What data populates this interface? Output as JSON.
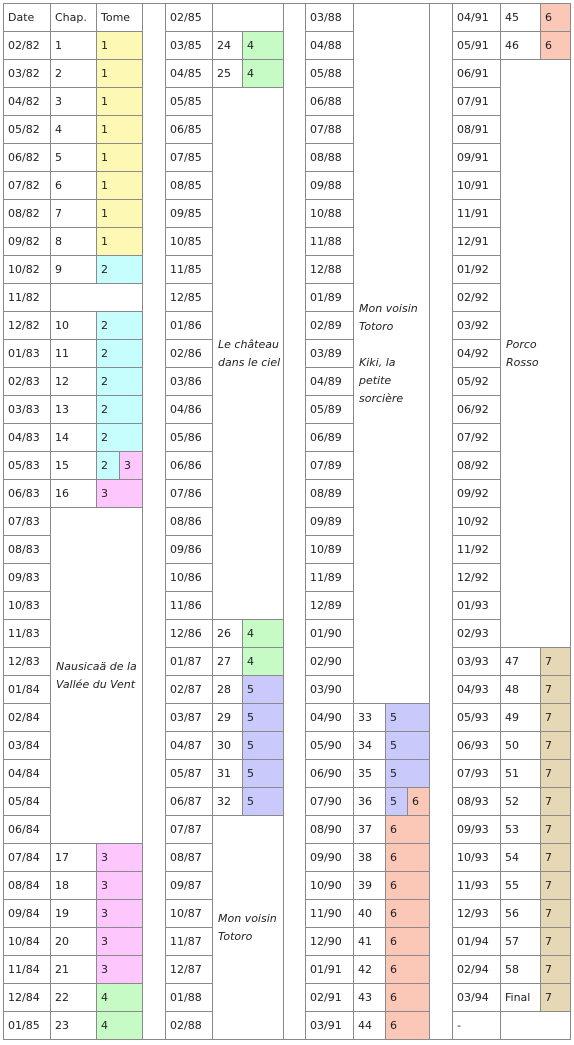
{
  "columns": [
    {
      "rows": [
        {
          "date": "Date",
          "chap": "Chap.",
          "tome": "Tome"
        },
        {
          "date": "02/82",
          "chap": "1",
          "tome": "1"
        },
        {
          "date": "03/82",
          "chap": "2",
          "tome": "1"
        },
        {
          "date": "04/82",
          "chap": "3",
          "tome": "1"
        },
        {
          "date": "05/82",
          "chap": "4",
          "tome": "1"
        },
        {
          "date": "06/82",
          "chap": "5",
          "tome": "1"
        },
        {
          "date": "07/82",
          "chap": "6",
          "tome": "1"
        },
        {
          "date": "08/82",
          "chap": "7",
          "tome": "1"
        },
        {
          "date": "09/82",
          "chap": "8",
          "tome": "1"
        },
        {
          "date": "10/82",
          "chap": "9",
          "tome": "2"
        },
        {
          "date": "11/82"
        },
        {
          "date": "12/82",
          "chap": "10",
          "tome": "2"
        },
        {
          "date": "01/83",
          "chap": "11",
          "tome": "2"
        },
        {
          "date": "02/83",
          "chap": "12",
          "tome": "2"
        },
        {
          "date": "03/83",
          "chap": "13",
          "tome": "2"
        },
        {
          "date": "04/83",
          "chap": "14",
          "tome": "2"
        },
        {
          "date": "05/83",
          "chap": "15",
          "tome": [
            "2",
            "3"
          ]
        },
        {
          "date": "06/83",
          "chap": "16",
          "tome": "3"
        },
        {
          "date": "07/83",
          "note": [
            "Nausicaä de la Vallée du Vent"
          ]
        },
        {
          "date": "08/83"
        },
        {
          "date": "09/83"
        },
        {
          "date": "10/83"
        },
        {
          "date": "11/83"
        },
        {
          "date": "12/83"
        },
        {
          "date": "01/84"
        },
        {
          "date": "02/84"
        },
        {
          "date": "03/84"
        },
        {
          "date": "04/84"
        },
        {
          "date": "05/84"
        },
        {
          "date": "06/84"
        },
        {
          "date": "07/84",
          "chap": "17",
          "tome": "3"
        },
        {
          "date": "08/84",
          "chap": "18",
          "tome": "3"
        },
        {
          "date": "09/84",
          "chap": "19",
          "tome": "3"
        },
        {
          "date": "10/84",
          "chap": "20",
          "tome": "3"
        },
        {
          "date": "11/84",
          "chap": "21",
          "tome": "3"
        },
        {
          "date": "12/84",
          "chap": "22",
          "tome": "4"
        },
        {
          "date": "01/85",
          "chap": "23",
          "tome": "4"
        }
      ]
    },
    {
      "rows": [
        {
          "date": "02/85"
        },
        {
          "date": "03/85",
          "chap": "24",
          "tome": "4"
        },
        {
          "date": "04/85",
          "chap": "25",
          "tome": "4"
        },
        {
          "date": "05/85",
          "note": [
            "Le château dans le ciel"
          ]
        },
        {
          "date": "06/85"
        },
        {
          "date": "07/85"
        },
        {
          "date": "08/85"
        },
        {
          "date": "09/85"
        },
        {
          "date": "10/85"
        },
        {
          "date": "11/85"
        },
        {
          "date": "12/85"
        },
        {
          "date": "01/86"
        },
        {
          "date": "02/86"
        },
        {
          "date": "03/86"
        },
        {
          "date": "04/86"
        },
        {
          "date": "05/86"
        },
        {
          "date": "06/86"
        },
        {
          "date": "07/86"
        },
        {
          "date": "08/86"
        },
        {
          "date": "09/86"
        },
        {
          "date": "10/86"
        },
        {
          "date": "11/86"
        },
        {
          "date": "12/86",
          "chap": "26",
          "tome": "4"
        },
        {
          "date": "01/87",
          "chap": "27",
          "tome": "4"
        },
        {
          "date": "02/87",
          "chap": "28",
          "tome": "5"
        },
        {
          "date": "03/87",
          "chap": "29",
          "tome": "5"
        },
        {
          "date": "04/87",
          "chap": "30",
          "tome": "5"
        },
        {
          "date": "05/87",
          "chap": "31",
          "tome": "5"
        },
        {
          "date": "06/87",
          "chap": "32",
          "tome": "5"
        },
        {
          "date": "07/87",
          "note": [
            "Mon voisin Totoro"
          ]
        },
        {
          "date": "08/87"
        },
        {
          "date": "09/87"
        },
        {
          "date": "10/87"
        },
        {
          "date": "11/87"
        },
        {
          "date": "12/87"
        },
        {
          "date": "01/88"
        },
        {
          "date": "02/88"
        }
      ]
    },
    {
      "rows": [
        {
          "date": "03/88",
          "note": [
            "Mon voisin Totoro",
            "Kiki, la petite sorcière"
          ]
        },
        {
          "date": "04/88"
        },
        {
          "date": "05/88"
        },
        {
          "date": "06/88"
        },
        {
          "date": "07/88"
        },
        {
          "date": "08/88"
        },
        {
          "date": "09/88"
        },
        {
          "date": "10/88"
        },
        {
          "date": "11/88"
        },
        {
          "date": "12/88"
        },
        {
          "date": "01/89"
        },
        {
          "date": "02/89"
        },
        {
          "date": "03/89"
        },
        {
          "date": "04/89"
        },
        {
          "date": "05/89"
        },
        {
          "date": "06/89"
        },
        {
          "date": "07/89"
        },
        {
          "date": "08/89"
        },
        {
          "date": "09/89"
        },
        {
          "date": "10/89"
        },
        {
          "date": "11/89"
        },
        {
          "date": "12/89"
        },
        {
          "date": "01/90"
        },
        {
          "date": "02/90"
        },
        {
          "date": "03/90"
        },
        {
          "date": "04/90",
          "chap": "33",
          "tome": "5"
        },
        {
          "date": "05/90",
          "chap": "34",
          "tome": "5"
        },
        {
          "date": "06/90",
          "chap": "35",
          "tome": "5"
        },
        {
          "date": "07/90",
          "chap": "36",
          "tome": [
            "5",
            "6"
          ]
        },
        {
          "date": "08/90",
          "chap": "37",
          "tome": "6"
        },
        {
          "date": "09/90",
          "chap": "38",
          "tome": "6"
        },
        {
          "date": "10/90",
          "chap": "39",
          "tome": "6"
        },
        {
          "date": "11/90",
          "chap": "40",
          "tome": "6"
        },
        {
          "date": "12/90",
          "chap": "41",
          "tome": "6"
        },
        {
          "date": "01/91",
          "chap": "42",
          "tome": "6"
        },
        {
          "date": "02/91",
          "chap": "43",
          "tome": "6"
        },
        {
          "date": "03/91",
          "chap": "44",
          "tome": "6"
        }
      ]
    },
    {
      "rows": [
        {
          "date": "04/91",
          "chap": "45",
          "tome": "6"
        },
        {
          "date": "05/91",
          "chap": "46",
          "tome": "6"
        },
        {
          "date": "06/91",
          "note": [
            "Porco Rosso"
          ]
        },
        {
          "date": "07/91"
        },
        {
          "date": "08/91"
        },
        {
          "date": "09/91"
        },
        {
          "date": "10/91"
        },
        {
          "date": "11/91"
        },
        {
          "date": "12/91"
        },
        {
          "date": "01/92"
        },
        {
          "date": "02/92"
        },
        {
          "date": "03/92"
        },
        {
          "date": "04/92"
        },
        {
          "date": "05/92"
        },
        {
          "date": "06/92"
        },
        {
          "date": "07/92"
        },
        {
          "date": "08/92"
        },
        {
          "date": "09/92"
        },
        {
          "date": "10/92"
        },
        {
          "date": "11/92"
        },
        {
          "date": "12/92"
        },
        {
          "date": "01/93"
        },
        {
          "date": "02/93"
        },
        {
          "date": "03/93",
          "chap": "47",
          "tome": "7"
        },
        {
          "date": "04/93",
          "chap": "48",
          "tome": "7"
        },
        {
          "date": "05/93",
          "chap": "49",
          "tome": "7"
        },
        {
          "date": "06/93",
          "chap": "50",
          "tome": "7"
        },
        {
          "date": "07/93",
          "chap": "51",
          "tome": "7"
        },
        {
          "date": "08/93",
          "chap": "52",
          "tome": "7"
        },
        {
          "date": "09/93",
          "chap": "53",
          "tome": "7"
        },
        {
          "date": "10/93",
          "chap": "54",
          "tome": "7"
        },
        {
          "date": "11/93",
          "chap": "55",
          "tome": "7"
        },
        {
          "date": "12/93",
          "chap": "56",
          "tome": "7"
        },
        {
          "date": "01/94",
          "chap": "57",
          "tome": "7"
        },
        {
          "date": "02/94",
          "chap": "58",
          "tome": "7"
        },
        {
          "date": "03/94",
          "chap": "Final",
          "tome": "7"
        },
        {
          "date": "-"
        }
      ]
    }
  ],
  "tome_colors": {
    "1": "#fdf8b4",
    "2": "#c6fdfd",
    "3": "#fdc6fd",
    "4": "#c6fbc6",
    "5": "#c9c9fb",
    "6": "#fbc8b8",
    "7": "#e6d8b4"
  }
}
